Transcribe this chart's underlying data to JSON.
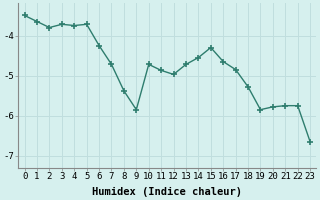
{
  "x": [
    0,
    1,
    2,
    3,
    4,
    5,
    6,
    7,
    8,
    9,
    10,
    11,
    12,
    13,
    14,
    15,
    16,
    17,
    18,
    19,
    20,
    21,
    22,
    23
  ],
  "y": [
    -3.5,
    -3.65,
    -3.8,
    -3.72,
    -3.75,
    -3.72,
    -4.25,
    -4.72,
    -5.38,
    -5.85,
    -4.72,
    -4.87,
    -4.97,
    -4.72,
    -4.55,
    -4.3,
    -4.65,
    -4.85,
    -5.28,
    -5.85,
    -5.78,
    -5.75,
    -5.75,
    -6.65
  ],
  "line_color": "#2e7d6e",
  "marker": "+",
  "marker_size": 4,
  "marker_lw": 1.2,
  "line_width": 1.0,
  "background_color": "#d6f0ee",
  "grid_color": "#c0dede",
  "xlabel": "Humidex (Indice chaleur)",
  "xlabel_fontsize": 7.5,
  "tick_fontsize": 6.5,
  "xlim": [
    -0.5,
    23.5
  ],
  "ylim": [
    -7.3,
    -3.2
  ],
  "yticks": [
    -7,
    -6,
    -5,
    -4
  ],
  "xticks": [
    0,
    1,
    2,
    3,
    4,
    5,
    6,
    7,
    8,
    9,
    10,
    11,
    12,
    13,
    14,
    15,
    16,
    17,
    18,
    19,
    20,
    21,
    22,
    23
  ]
}
